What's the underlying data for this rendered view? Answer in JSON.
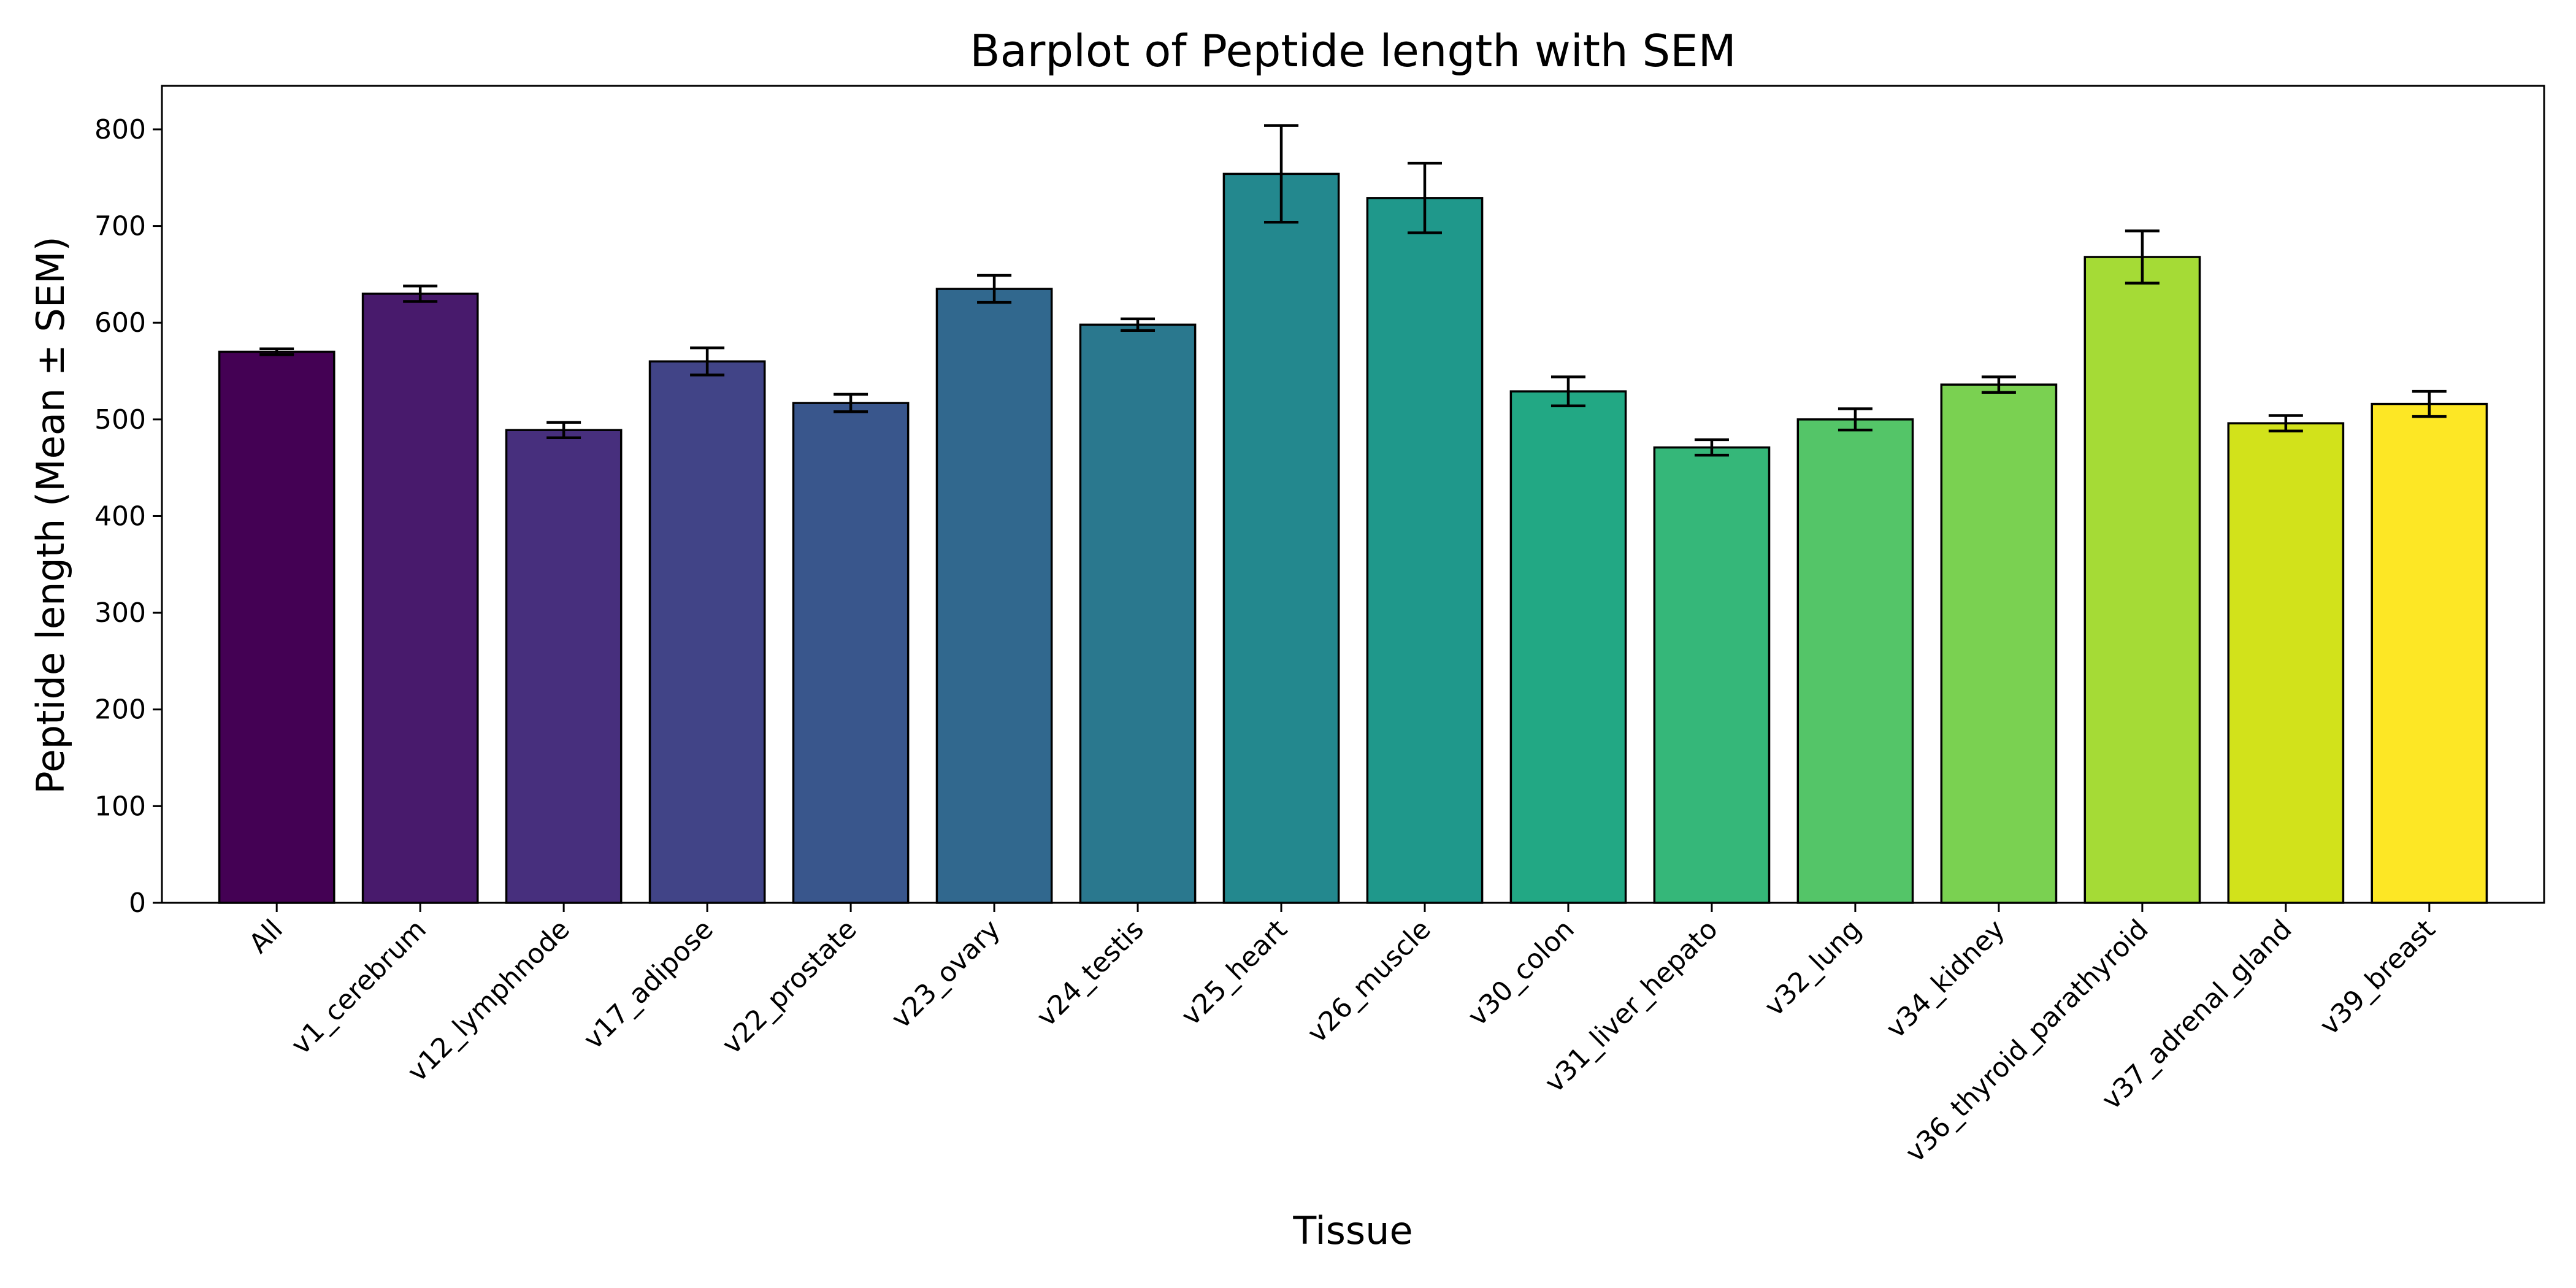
{
  "chart_data": {
    "type": "bar",
    "title": "Barplot of Peptide length with SEM",
    "xlabel": "Tissue",
    "ylabel": "Peptide length (Mean ± SEM)",
    "ylim": [
      0,
      845
    ],
    "yticks": [
      0,
      100,
      200,
      300,
      400,
      500,
      600,
      700,
      800
    ],
    "grid": false,
    "categories": [
      "All",
      "v1_cerebrum",
      "v12_lymphnode",
      "v17_adipose",
      "v22_prostate",
      "v23_ovary",
      "v24_testis",
      "v25_heart",
      "v26_muscle",
      "v30_colon",
      "v31_liver_hepato",
      "v32_lung",
      "v34_kidney",
      "v36_thyroid_parathyroid",
      "v37_adrenal_gland",
      "v39_breast"
    ],
    "values": [
      570,
      630,
      489,
      560,
      517,
      635,
      598,
      754,
      729,
      529,
      471,
      500,
      536,
      668,
      496,
      516
    ],
    "errors": [
      3,
      8,
      8,
      14,
      9,
      14,
      6,
      50,
      36,
      15,
      8,
      11,
      8,
      27,
      8,
      13
    ],
    "colors": [
      "#440154",
      "#481a6c",
      "#472f7d",
      "#414487",
      "#39568c",
      "#31688e",
      "#2a788e",
      "#23888e",
      "#1f988b",
      "#22a884",
      "#35b779",
      "#54c568",
      "#7ad151",
      "#a5db36",
      "#d2e21b",
      "#fde725"
    ],
    "bar_edge_color": "#000000",
    "error_bar_color": "#000000"
  }
}
